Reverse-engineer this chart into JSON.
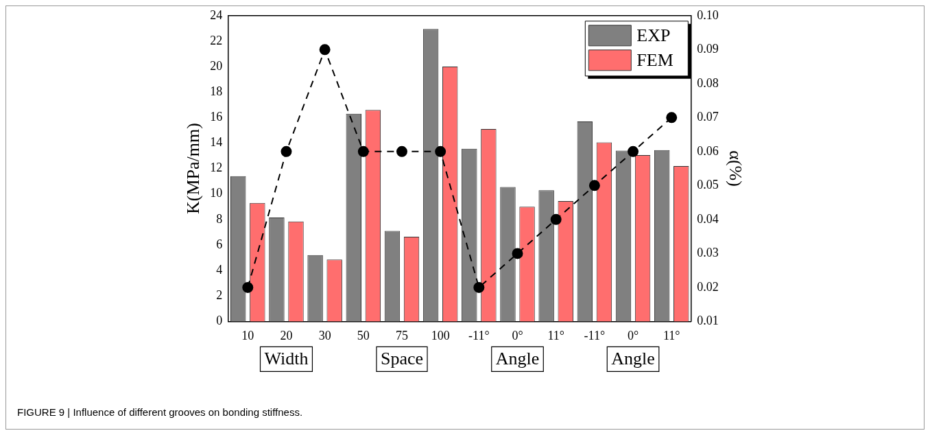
{
  "chart_data": {
    "type": "bar",
    "categories": [
      "10",
      "20",
      "30",
      "50",
      "75",
      "100",
      "-11°",
      "0°",
      "11°",
      "-11°",
      "0°",
      "11°"
    ],
    "series": [
      {
        "name": "EXP",
        "color": "#808080",
        "values": [
          11.4,
          8.15,
          5.2,
          16.3,
          7.1,
          22.95,
          13.55,
          10.55,
          10.3,
          15.7,
          13.4,
          13.45
        ]
      },
      {
        "name": "FEM",
        "color": "#ff6e6e",
        "values": [
          9.3,
          7.85,
          4.85,
          16.6,
          6.65,
          20.0,
          15.1,
          9.0,
          9.45,
          14.05,
          13.05,
          12.2
        ]
      },
      {
        "type": "line",
        "axis": "y2",
        "color": "#000000",
        "marker": "circle",
        "line_style": "dashed",
        "values": [
          0.02,
          0.06,
          0.09,
          0.06,
          0.06,
          0.06,
          0.02,
          0.03,
          0.04,
          0.05,
          0.06,
          0.07
        ]
      }
    ],
    "ylabel": "K(MPa/mm)",
    "y2label": "α(%)",
    "ylim": [
      0,
      24
    ],
    "yticks": [
      0,
      2,
      4,
      6,
      8,
      10,
      12,
      14,
      16,
      18,
      20,
      22,
      24
    ],
    "y2lim": [
      0.01,
      0.1
    ],
    "y2ticks": [
      0.01,
      0.02,
      0.03,
      0.04,
      0.05,
      0.06,
      0.07,
      0.08,
      0.09,
      {
        "value": 0.1,
        "label": "0.10"
      }
    ],
    "legend": "top right",
    "grid": false,
    "annotations": [
      "Width",
      "Space",
      "Angle",
      "Angle",
      "FIGURE 9 | Influence of different grooves on bonding stiffness."
    ]
  }
}
